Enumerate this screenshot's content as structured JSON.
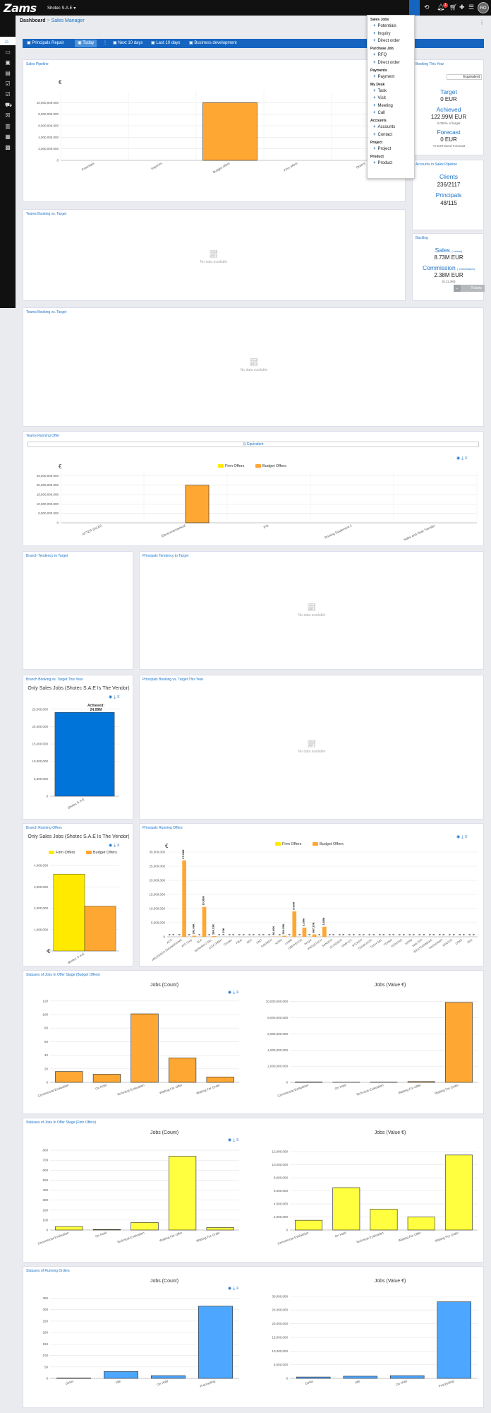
{
  "app": {
    "logo": "Zams",
    "company": "Shotec S.A.E",
    "avatar": "RO",
    "notif_count": "1"
  },
  "breadcrumb": {
    "home": "Dashboard",
    "sep": ">",
    "current": "Sales Manager"
  },
  "tabs": [
    "Principals Repair",
    "Today",
    "Next 10 days",
    "Last 10 days",
    "Business development"
  ],
  "menu": {
    "sections": [
      {
        "title": "Sales Jobs",
        "items": [
          "Potentials",
          "Inquiry",
          "Direct order"
        ]
      },
      {
        "title": "Purchase Job",
        "items": [
          "RFQ",
          "Direct order"
        ]
      },
      {
        "title": "Payments",
        "items": [
          "Payment"
        ]
      },
      {
        "title": "My Desk",
        "items": [
          "Task",
          "Visit",
          "Meeting",
          "Call"
        ]
      },
      {
        "title": "Accounts",
        "items": [
          "Accounts",
          "Contact"
        ]
      },
      {
        "title": "Project",
        "items": [
          "Project"
        ]
      },
      {
        "title": "Product",
        "items": [
          "Product"
        ]
      }
    ]
  },
  "sales_pipeline": {
    "title": "Sales Pipeline",
    "unit": "€"
  },
  "booking": {
    "title": "Booking This Year",
    "equivalent": "Equivalent",
    "target_label": "Target",
    "target_val": "0 EUR",
    "achieved_label": "Achieved",
    "achieved_val": "122.99M EUR",
    "achieved_sub": "0.000% of target",
    "forecast_label": "Forecast",
    "forecast_val": "0 EUR",
    "forecast_sub": "+0 EUR Bond Forecast"
  },
  "accounts": {
    "title": "Accounts in Sales Pipeline",
    "clients_label": "Clients",
    "clients_val": "236/2117",
    "principals_label": "Principals",
    "principals_val": "48/115"
  },
  "backlog": {
    "title": "Backlog",
    "sales_label": "Sales",
    "sales_sub": "( orders)",
    "sales_val": "8.73M EUR",
    "comm_label": "Commission",
    "comm_sub": "( commission)",
    "comm_val": "2.38M EUR",
    "comm_sub2": "(0.11.3M)",
    "tickets": "Tickets"
  },
  "teams_booking_1": {
    "title": "Teams Booking vs. Target",
    "nodata": "No data available"
  },
  "teams_booking_2": {
    "title": "Teams Booking vs. Target",
    "nodata": "No data available"
  },
  "teams_running": {
    "title": "Teams Running Offer",
    "equivalent": "Equivalent",
    "legend": [
      "Firm Offers",
      "Budget Offers"
    ],
    "unit": "€"
  },
  "branch_tendency": {
    "title": "Branch Tendency to Target"
  },
  "principals_tendency": {
    "title": "Principals Tendency to Target",
    "nodata": "No data available"
  },
  "branch_booking": {
    "title": "Branch Booking vs. Target This Year",
    "subtitle": "Only Sales Jobs (Shotec S.A.E Is The Vendor)",
    "tooltip_label": "Achieved:",
    "tooltip_val": "24.09M",
    "unit": "€"
  },
  "principals_booking": {
    "title": "Principals Booking vs. Target This Year",
    "nodata": "No data available"
  },
  "branch_running": {
    "title": "Branch Running Offers",
    "subtitle": "Only Sales Jobs (Shotec S.A.E Is The Vendor)",
    "legend": [
      "Firm Offers",
      "Budget Offers"
    ],
    "unit": "€"
  },
  "principals_running": {
    "title": "Principals Running Offers",
    "legend": [
      "Firm Offers",
      "Budget Offers"
    ],
    "unit": "€"
  },
  "status_budget": {
    "title": "Statuses of Jobs In Offer Stage (Budget Offers)",
    "count_title": "Jobs (Count)",
    "value_title": "Jobs (Value €)"
  },
  "status_firm": {
    "title": "Statuses of Jobs In Offer Stage (Firm Offers)",
    "count_title": "Jobs (Count)",
    "value_title": "Jobs (Value €)"
  },
  "status_orders": {
    "title": "Statuses of Running Orders",
    "count_title": "Jobs (Count)",
    "value_title": "Jobs (Value €)"
  },
  "colors": {
    "accent": "#1565c0",
    "budget": "#ffa733",
    "firm": "#ffff40",
    "firm_dark": "#ffea00",
    "branch_blue": "#0074d9",
    "orders_blue": "#4da6ff"
  },
  "chart_data": [
    {
      "id": "sales_pipeline",
      "type": "bar",
      "categories": [
        "Potentials",
        "Inquiries",
        "Budget offers",
        "Firm offers",
        "Orders"
      ],
      "values": [
        0,
        0,
        10000000,
        0,
        0
      ],
      "ylim": [
        0,
        12000000
      ],
      "yticks": [
        0,
        2000000,
        4000000,
        6000000,
        8000000,
        10000000
      ],
      "ytick_labels": [
        "0",
        "2,000,000.000",
        "4,000,000.000",
        "6,000,000.000",
        "8,000,000.000",
        "10,000,000.000"
      ]
    },
    {
      "id": "teams_running",
      "type": "bar",
      "categories": [
        "AFTER SALES",
        "Electromechanical",
        "IFD",
        "Printing Equipment 2",
        "Sales and Heat Transfer"
      ],
      "series": [
        {
          "name": "Firm Offers",
          "values": [
            0,
            0,
            0,
            0,
            0
          ]
        },
        {
          "name": "Budget Offers",
          "values": [
            0,
            20000000,
            0,
            0,
            0
          ]
        }
      ],
      "ylim": [
        0,
        27000000
      ],
      "yticks": [
        0,
        5000000,
        10000000,
        15000000,
        20000000,
        25000000
      ],
      "ytick_labels": [
        "0",
        "5,000,000.000",
        "10,000,000.000",
        "15,000,000.000",
        "20,000,000.000",
        "25,000,000.000"
      ]
    },
    {
      "id": "branch_booking",
      "type": "bar",
      "categories": [
        "Shotec S.A.E"
      ],
      "values": [
        24090000
      ],
      "ylim": [
        0,
        27000000
      ],
      "yticks": [
        0,
        5000000,
        10000000,
        15000000,
        20000000,
        25000000
      ],
      "ytick_labels": [
        "0",
        "5,000,000",
        "10,000,000",
        "15,000,000",
        "20,000,000",
        "25,000,000"
      ]
    },
    {
      "id": "branch_running",
      "type": "bar",
      "categories": [
        "Shotec S.A.E"
      ],
      "series": [
        {
          "name": "Firm Offers",
          "values": [
            3600000
          ]
        },
        {
          "name": "Budget Offers",
          "values": [
            2100000
          ]
        }
      ],
      "ylim": [
        0,
        4300000
      ],
      "yticks": [
        0,
        1000000,
        2000000,
        3000000,
        4000000
      ],
      "ytick_labels": [
        "0",
        "1,000,000",
        "2,000,000",
        "3,000,000",
        "4,000,000"
      ]
    },
    {
      "id": "principals_running",
      "type": "bar",
      "categories": [
        "ACS",
        "ANDERSEN ENGINEERING",
        "ATS Corp",
        "BLA",
        "BURANCO SRL",
        "COX GMBH",
        "Condec",
        "FMAI",
        "GEA",
        "GMT",
        "GORMEN",
        "KERN",
        "LEMO",
        "OBERSTEIN",
        "PFAFF",
        "PRESSTECH",
        "SANDEN",
        "SCHIEBER",
        "SIMPLEX",
        "STOKER",
        "TEAMLOGIC",
        "TECH SRL",
        "TEKNO",
        "TOPSTAR",
        "VERO",
        "WALTER",
        "WESTERNMAKE",
        "WIEDEMAN",
        "WINTER",
        "ZIPAS",
        "ZRS"
      ],
      "series": [
        {
          "name": "Firm Offers",
          "values": [
            0,
            0,
            0,
            0,
            0,
            0,
            0,
            0,
            0,
            0,
            0,
            0,
            0,
            0,
            0,
            0,
            0,
            0,
            0,
            0,
            0,
            0,
            0,
            0,
            0,
            0,
            0,
            0,
            0,
            0,
            0
          ]
        },
        {
          "name": "Budget Offers",
          "values": [
            0,
            27030000,
            392060,
            10580000,
            268310,
            2230,
            0,
            0,
            0,
            0,
            86400,
            360550,
            9000000,
            3260000,
            867200,
            3550000,
            0,
            0,
            0,
            0,
            0,
            0,
            0,
            0,
            0,
            0,
            0,
            0,
            0,
            0,
            0
          ]
        }
      ],
      "ylim": [
        0,
        30000000
      ],
      "yticks": [
        0,
        5000000,
        10000000,
        15000000,
        20000000,
        25000000,
        30000000
      ],
      "ytick_labels": [
        "0",
        "5,000,000",
        "10,000,000",
        "15,000,000",
        "20,000,000",
        "25,000,000",
        "30,000,000"
      ]
    },
    {
      "id": "budget_count",
      "type": "bar",
      "categories": [
        "Commercial Evaluation",
        "On Hold",
        "Technical Evaluation",
        "Waiting For Offer",
        "Waiting For Order"
      ],
      "values": [
        16,
        12,
        101,
        36,
        8
      ],
      "ylim": [
        0,
        125
      ],
      "yticks": [
        0,
        20,
        40,
        60,
        80,
        100,
        120
      ]
    },
    {
      "id": "budget_value",
      "type": "bar",
      "categories": [
        "Commercial Evaluation",
        "On Hold",
        "Technical Evaluation",
        "Waiting For Offer",
        "Waiting For Order"
      ],
      "values": [
        50000,
        20000,
        30000,
        100000,
        9900000
      ],
      "ylim": [
        0,
        10500000
      ],
      "yticks": [
        0,
        2000000,
        4000000,
        6000000,
        8000000,
        10000000
      ],
      "ytick_labels": [
        "0",
        "2,000,000.000",
        "4,000,000.000",
        "6,000,000.000",
        "8,000,000.000",
        "10,000,000.000"
      ]
    },
    {
      "id": "firm_count",
      "type": "bar",
      "categories": [
        "Commercial Evaluation",
        "On Hold",
        "Technical Evaluation",
        "Waiting For Offer",
        "Waiting For Order"
      ],
      "values": [
        35,
        5,
        75,
        740,
        25
      ],
      "ylim": [
        0,
        850
      ],
      "yticks": [
        0,
        100,
        200,
        300,
        400,
        500,
        600,
        700,
        800
      ]
    },
    {
      "id": "firm_value",
      "type": "bar",
      "categories": [
        "Commercial Evaluation",
        "On Hold",
        "Technical Evaluation",
        "Waiting For Offer",
        "Waiting For Order"
      ],
      "values": [
        1500000,
        6500000,
        3200000,
        2000000,
        11500000
      ],
      "ylim": [
        0,
        13000000
      ],
      "yticks": [
        0,
        2000000,
        4000000,
        6000000,
        8000000,
        10000000,
        12000000
      ],
      "ytick_labels": [
        "0",
        "2,000,000",
        "4,000,000",
        "6,000,000",
        "8,000,000",
        "10,000,000",
        "12,000,000"
      ]
    },
    {
      "id": "orders_count",
      "type": "bar",
      "categories": [
        "Delay",
        "Idle",
        "On Hold",
        "Proceeding"
      ],
      "values": [
        2,
        30,
        12,
        315
      ],
      "ylim": [
        0,
        370
      ],
      "yticks": [
        0,
        50,
        100,
        150,
        200,
        250,
        300,
        350
      ]
    },
    {
      "id": "orders_value",
      "type": "bar",
      "categories": [
        "Delay",
        "Idle",
        "On Hold",
        "Proceeding"
      ],
      "values": [
        500000,
        800000,
        1000000,
        28000000
      ],
      "ylim": [
        0,
        31000000
      ],
      "yticks": [
        0,
        5000000,
        10000000,
        15000000,
        20000000,
        25000000,
        30000000
      ],
      "ytick_labels": [
        "0",
        "5,000,000",
        "10,000,000",
        "15,000,000",
        "20,000,000",
        "25,000,000",
        "30,000,000"
      ]
    }
  ]
}
